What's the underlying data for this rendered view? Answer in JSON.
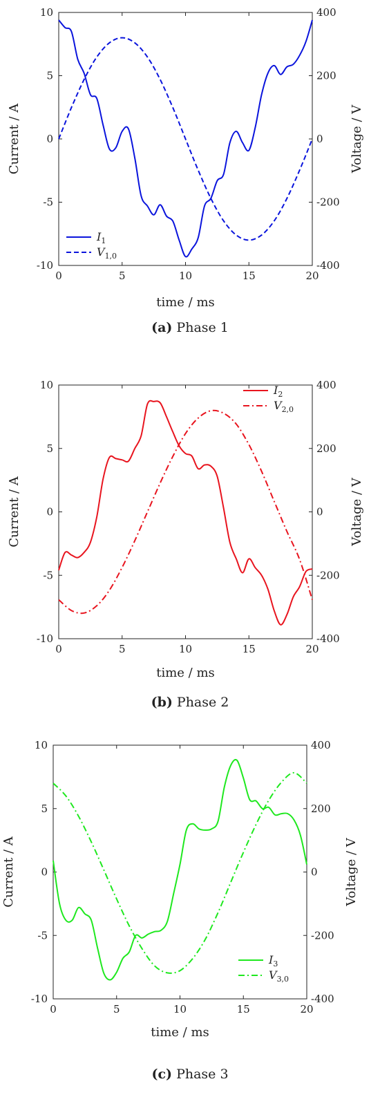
{
  "chart_data": [
    {
      "type": "line",
      "caption_letter": "(a)",
      "caption_text": "Phase 1",
      "xlabel": "time / ms",
      "ylabel": "Current / A",
      "ylabel_right": "Voltage / V",
      "xlim": [
        0,
        20
      ],
      "ylim": [
        -10,
        10
      ],
      "ylim_right": [
        -400,
        400
      ],
      "xticks": [
        "0",
        "5",
        "10",
        "15",
        "20"
      ],
      "yticks": [
        "10",
        "5",
        "0",
        "-5",
        "-10"
      ],
      "yticks_right": [
        "400",
        "200",
        "0",
        "-200",
        "-400"
      ],
      "legend_position": "bottom-left",
      "color": "#0a14dc",
      "series": [
        {
          "name": "I1",
          "label_main": "I",
          "label_sub": "1",
          "axis": "left",
          "dash": "solid",
          "x": [
            0,
            0.5,
            1,
            1.5,
            2,
            2.5,
            3,
            3.5,
            4,
            4.5,
            5,
            5.5,
            6,
            6.5,
            7,
            7.5,
            8,
            8.5,
            9,
            9.5,
            10,
            10.5,
            11,
            11.5,
            12,
            12.5,
            13,
            13.5,
            14,
            14.5,
            15,
            15.5,
            16,
            16.5,
            17,
            17.5,
            18,
            18.5,
            19,
            19.5,
            20
          ],
          "y": [
            9.4,
            8.8,
            8.5,
            6.3,
            5.2,
            3.5,
            3.2,
            1.1,
            -0.8,
            -0.7,
            0.6,
            0.8,
            -1.5,
            -4.5,
            -5.3,
            -6.0,
            -5.2,
            -6.1,
            -6.5,
            -8.0,
            -9.3,
            -8.7,
            -7.8,
            -5.3,
            -4.7,
            -3.3,
            -2.8,
            -0.3,
            0.6,
            -0.3,
            -0.9,
            0.9,
            3.5,
            5.2,
            5.8,
            5.1,
            5.7,
            5.9,
            6.6,
            7.7,
            9.4
          ]
        },
        {
          "name": "V1,0",
          "label_main": "V",
          "label_sub": "1,0",
          "axis": "right",
          "dash": "dash",
          "x": [
            0,
            1,
            2,
            3,
            4,
            5,
            6,
            7,
            8,
            9,
            10,
            11,
            12,
            13,
            14,
            15,
            16,
            17,
            18,
            19,
            20
          ],
          "y": [
            0,
            99,
            188,
            259,
            304,
            320,
            304,
            259,
            188,
            99,
            0,
            -99,
            -188,
            -259,
            -304,
            -320,
            -304,
            -259,
            -188,
            -99,
            0
          ]
        }
      ]
    },
    {
      "type": "line",
      "caption_letter": "(b)",
      "caption_text": "Phase 2",
      "xlabel": "time / ms",
      "ylabel": "Current / A",
      "ylabel_right": "Voltage / V",
      "xlim": [
        0,
        20
      ],
      "ylim": [
        -10,
        10
      ],
      "ylim_right": [
        -400,
        400
      ],
      "xticks": [
        "0",
        "5",
        "10",
        "15",
        "20"
      ],
      "yticks": [
        "10",
        "5",
        "0",
        "-5",
        "-10"
      ],
      "yticks_right": [
        "400",
        "200",
        "0",
        "-200",
        "-400"
      ],
      "legend_position": "top-right",
      "color": "#e8141e",
      "series": [
        {
          "name": "I2",
          "label_main": "I",
          "label_sub": "2",
          "axis": "left",
          "dash": "solid",
          "x": [
            0,
            0.5,
            1,
            1.5,
            2,
            2.5,
            3,
            3.5,
            4,
            4.5,
            5,
            5.5,
            6,
            6.5,
            7,
            7.5,
            8,
            8.5,
            9,
            9.5,
            10,
            10.5,
            11,
            11.5,
            12,
            12.5,
            13,
            13.5,
            14,
            14.5,
            15,
            15.5,
            16,
            16.5,
            17,
            17.5,
            18,
            18.5,
            19,
            19.5,
            20
          ],
          "y": [
            -4.6,
            -3.2,
            -3.4,
            -3.6,
            -3.2,
            -2.4,
            -0.4,
            2.6,
            4.3,
            4.2,
            4.1,
            4.0,
            5.0,
            6.0,
            8.5,
            8.7,
            8.6,
            7.5,
            6.3,
            5.2,
            4.6,
            4.4,
            3.4,
            3.7,
            3.6,
            2.8,
            0.3,
            -2.4,
            -3.7,
            -4.8,
            -3.7,
            -4.4,
            -5.0,
            -6.1,
            -7.8,
            -8.9,
            -8.1,
            -6.7,
            -5.9,
            -4.7,
            -4.5
          ]
        },
        {
          "name": "V2,0",
          "label_main": "V",
          "label_sub": "2,0",
          "axis": "right",
          "dash": "dashdot",
          "x": [
            0,
            1,
            2,
            3,
            4,
            5,
            6,
            7,
            8,
            9,
            10,
            11,
            12,
            13,
            14,
            15,
            16,
            17,
            18,
            19,
            20
          ],
          "y": [
            -277,
            -311,
            -319,
            -296,
            -247,
            -175,
            -91,
            0,
            91,
            175,
            247,
            296,
            319,
            311,
            277,
            212,
            128,
            33,
            -62,
            -150,
            -277
          ]
        }
      ]
    },
    {
      "type": "line",
      "caption_letter": "(c)",
      "caption_text": "Phase 3",
      "xlabel": "time / ms",
      "ylabel": "Current / A",
      "ylabel_right": "Voltage / V",
      "xlim": [
        0,
        20
      ],
      "ylim": [
        -10,
        10
      ],
      "ylim_right": [
        -400,
        400
      ],
      "xticks": [
        "0",
        "5",
        "10",
        "15",
        "20"
      ],
      "yticks": [
        "10",
        "5",
        "0",
        "-5",
        "-10"
      ],
      "yticks_right": [
        "400",
        "200",
        "0",
        "-200",
        "-400"
      ],
      "legend_position": "bottom-right",
      "color": "#1ee81e",
      "series": [
        {
          "name": "I3",
          "label_main": "I",
          "label_sub": "3",
          "axis": "left",
          "dash": "solid",
          "x": [
            0,
            0.5,
            1,
            1.5,
            2,
            2.5,
            3,
            3.5,
            4,
            4.5,
            5,
            5.5,
            6,
            6.5,
            7,
            7.5,
            8,
            8.5,
            9,
            9.5,
            10,
            10.5,
            11,
            11.5,
            12,
            12.5,
            13,
            13.5,
            14,
            14.5,
            15,
            15.5,
            16,
            16.5,
            17,
            17.5,
            18,
            18.5,
            19,
            19.5,
            20
          ],
          "y": [
            0.9,
            -2.5,
            -3.8,
            -3.8,
            -2.8,
            -3.3,
            -3.8,
            -6.0,
            -8.0,
            -8.5,
            -7.9,
            -6.8,
            -6.3,
            -5.0,
            -5.2,
            -4.9,
            -4.7,
            -4.6,
            -3.9,
            -1.7,
            0.6,
            3.3,
            3.8,
            3.4,
            3.3,
            3.4,
            4.0,
            6.7,
            8.4,
            8.8,
            7.4,
            5.7,
            5.6,
            5.0,
            5.1,
            4.5,
            4.6,
            4.6,
            4.1,
            2.9,
            0.6
          ]
        },
        {
          "name": "V3,0",
          "label_main": "V",
          "label_sub": "3,0",
          "axis": "right",
          "dash": "dashdot",
          "x": [
            0,
            1,
            2,
            3,
            4,
            5,
            6,
            7,
            8,
            9,
            10,
            11,
            12,
            13,
            14,
            15,
            16,
            17,
            18,
            19,
            20
          ],
          "y": [
            280,
            240,
            176,
            95,
            6,
            -85,
            -170,
            -241,
            -296,
            -318,
            -311,
            -273,
            -212,
            -128,
            -33,
            62,
            150,
            226,
            283,
            313,
            280
          ]
        }
      ]
    }
  ]
}
